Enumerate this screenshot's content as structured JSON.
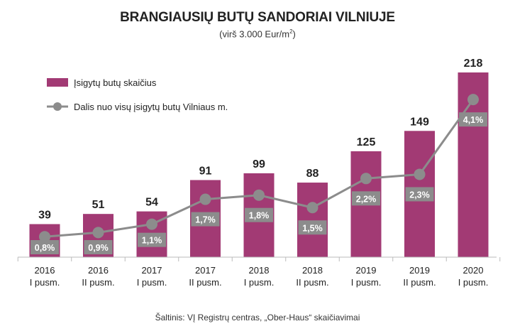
{
  "title": "BRANGIAUSIŲ BUTŲ SANDORIAI VILNIUJE",
  "subtitle_main": "(virš 3.000 Eur/m",
  "subtitle_sup": "2",
  "subtitle_end": ")",
  "source": "Šaltinis: VĮ Registrų centras, „Ober-Haus“ skaičiavimai",
  "colors": {
    "bar": "#a23a74",
    "line": "#8c8c8c",
    "label_box": "#8c8c8c",
    "axis": "#bbbbbb"
  },
  "chart_data": {
    "type": "bar",
    "title": "BRANGIAUSIŲ BUTŲ SANDORIAI VILNIUJE",
    "subtitle": "(virš 3.000 Eur/m2)",
    "categories": [
      [
        "2016",
        "I pusm."
      ],
      [
        "2016",
        "II pusm."
      ],
      [
        "2017",
        "I pusm."
      ],
      [
        "2017",
        "II pusm."
      ],
      [
        "2018",
        "I pusm."
      ],
      [
        "2018",
        "II pusm."
      ],
      [
        "2019",
        "I pusm."
      ],
      [
        "2019",
        "II pusm."
      ],
      [
        "2020",
        "I pusm."
      ]
    ],
    "series": [
      {
        "name": "Įsigytų butų skaičius",
        "type": "bar",
        "values": [
          39,
          51,
          54,
          91,
          99,
          88,
          125,
          149,
          218
        ],
        "labels": [
          "39",
          "51",
          "54",
          "91",
          "99",
          "88",
          "125",
          "149",
          "218"
        ]
      },
      {
        "name": "Dalis nuo visų įsigytų butų Vilniaus m.",
        "type": "line",
        "values": [
          0.8,
          0.9,
          1.1,
          1.7,
          1.8,
          1.5,
          2.2,
          2.3,
          4.1
        ],
        "labels": [
          "0,8%",
          "0,9%",
          "1,1%",
          "1,7%",
          "1,8%",
          "1,5%",
          "2,2%",
          "2,3%",
          "4,1%"
        ]
      }
    ],
    "legend_position": "top-left",
    "grid": false
  }
}
